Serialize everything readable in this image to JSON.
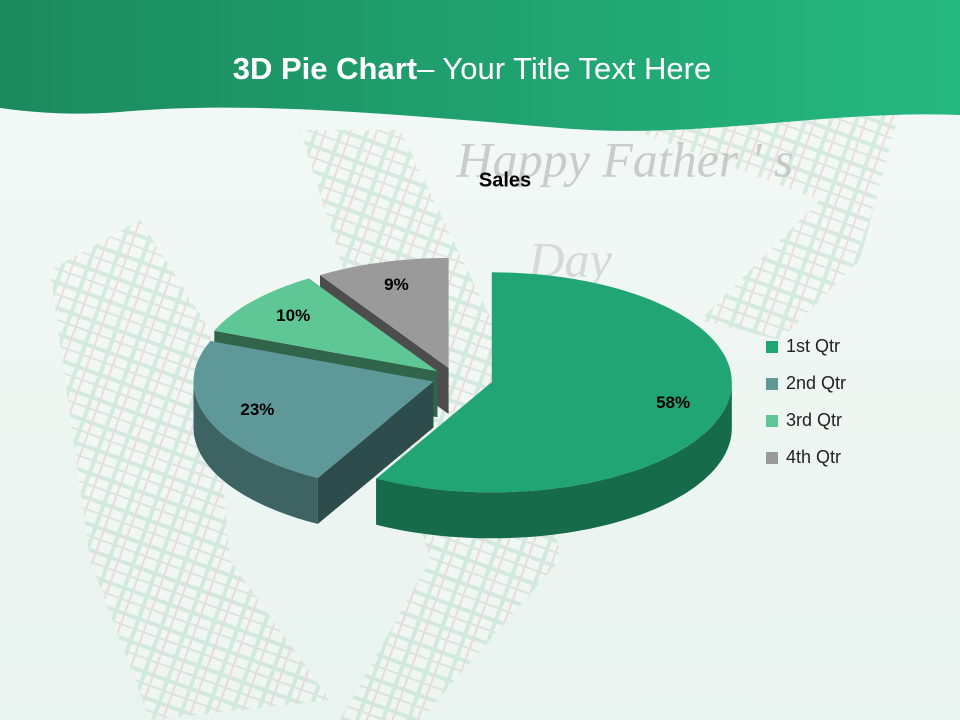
{
  "header": {
    "title_bold": "3D Pie Chart",
    "title_rest": "– Your Title Text Here"
  },
  "decoration": {
    "line1": "Happy Father ' s",
    "line2": "Day"
  },
  "chart_data": {
    "type": "pie",
    "title": "Sales",
    "categories": [
      "1st Qtr",
      "2nd Qtr",
      "3rd Qtr",
      "4th Qtr"
    ],
    "values": [
      58,
      23,
      10,
      9
    ],
    "value_labels": [
      "58%",
      "23%",
      "10%",
      "9%"
    ],
    "colors": [
      "#22a574",
      "#5e9898",
      "#5fc795",
      "#9a9a9a"
    ],
    "legend": "right"
  }
}
